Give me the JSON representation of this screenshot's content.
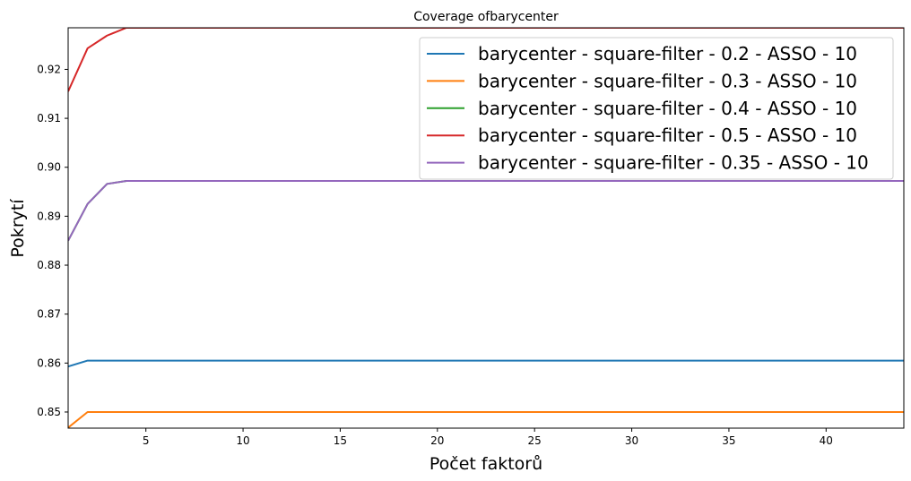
{
  "chart_data": {
    "type": "line",
    "title": "Coverage ofbarycenter",
    "xlabel": "Počet faktorů",
    "ylabel": "Pokrytí",
    "xlim": [
      1,
      44
    ],
    "ylim": [
      0.8467,
      0.9285
    ],
    "xticks": [
      5,
      10,
      15,
      20,
      25,
      30,
      35,
      40
    ],
    "yticks": [
      0.85,
      0.86,
      0.87,
      0.88,
      0.89,
      0.9,
      0.91,
      0.92
    ],
    "ytick_labels": [
      "0.85",
      "0.86",
      "0.87",
      "0.88",
      "0.89",
      "0.90",
      "0.91",
      "0.92"
    ],
    "grid": false,
    "legend_position": "top-right",
    "series": [
      {
        "name": "barycenter - square-filter - 0.2 - ASSO - 10",
        "color": "#1f77b4",
        "x": [
          1,
          2,
          3,
          4,
          44
        ],
        "y": [
          0.8593,
          0.8605,
          0.8605,
          0.8605,
          0.8605
        ]
      },
      {
        "name": "barycenter - square-filter - 0.3 - ASSO - 10",
        "color": "#ff7f0e",
        "x": [
          1,
          2,
          3,
          4,
          44
        ],
        "y": [
          0.8468,
          0.85,
          0.85,
          0.85,
          0.85
        ]
      },
      {
        "name": "barycenter - square-filter - 0.4 - ASSO - 10",
        "color": "#2ca02c",
        "x": [
          1,
          2,
          3,
          4,
          44
        ],
        "y": [
          0.885,
          0.8925,
          0.8966,
          0.8972,
          0.8972
        ]
      },
      {
        "name": "barycenter - square-filter - 0.5 - ASSO - 10",
        "color": "#d62728",
        "x": [
          1,
          2,
          3,
          4,
          44
        ],
        "y": [
          0.9155,
          0.9243,
          0.9269,
          0.9285,
          0.9285
        ]
      },
      {
        "name": "barycenter - square-filter - 0.35 - ASSO - 10",
        "color": "#9467bd",
        "x": [
          1,
          2,
          3,
          4,
          44
        ],
        "y": [
          0.885,
          0.8925,
          0.8966,
          0.8972,
          0.8972
        ]
      }
    ]
  }
}
